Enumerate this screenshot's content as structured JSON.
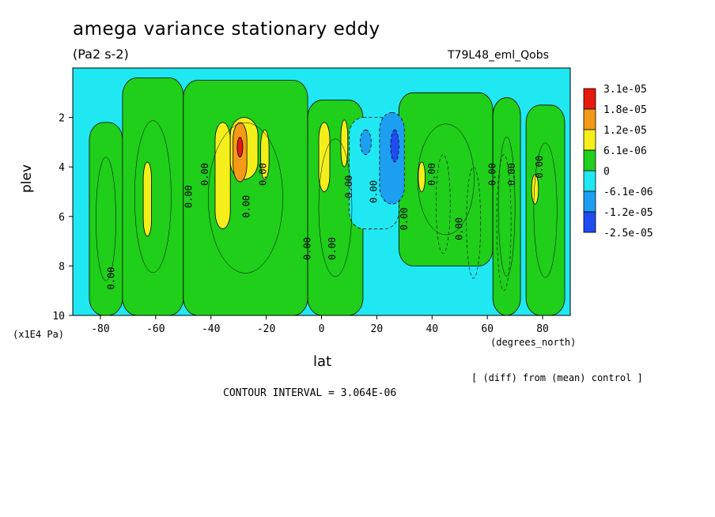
{
  "chart_data": {
    "type": "heatmap",
    "title": "amega variance stationary eddy",
    "units": "(Pa2 s-2)",
    "run_label": "T79L48_eml_Qobs",
    "xlabel": "lat",
    "x_units": "(degrees_north)",
    "ylabel": "plev",
    "y_units": "(x1E4 Pa)",
    "x_range": [
      -90,
      90
    ],
    "y_range": [
      0,
      10
    ],
    "y_inverted": true,
    "x_ticks": [
      "-80",
      "-60",
      "-40",
      "-20",
      "0",
      "20",
      "40",
      "60",
      "80"
    ],
    "x_tick_values": [
      -80,
      -60,
      -40,
      -20,
      0,
      20,
      40,
      60,
      80
    ],
    "y_ticks": [
      "2",
      "4",
      "6",
      "8",
      "10"
    ],
    "y_tick_values": [
      2,
      4,
      6,
      8,
      10
    ],
    "legend": {
      "placement": "right",
      "labels": [
        "3.1e-05",
        "1.8e-05",
        "1.2e-05",
        "6.1e-06",
        "0",
        "-6.1e-06",
        "-1.2e-05",
        "-2.5e-05"
      ],
      "colors": [
        "#e8190f",
        "#f59a16",
        "#f4ef1a",
        "#1fcf1a",
        "#1fe8f2",
        "#1c9ff0",
        "#1f4bf0"
      ]
    },
    "contour_label": "0.00",
    "note": "[ (diff) from (mean) control ]",
    "contour_interval": "CONTOUR INTERVAL = 3.064E-06",
    "regions": [
      {
        "level": "pos1",
        "lat": [
          -84,
          -72
        ],
        "plev": [
          2.2,
          10
        ]
      },
      {
        "level": "pos1",
        "lat": [
          -72,
          -50
        ],
        "plev": [
          0.4,
          10
        ]
      },
      {
        "level": "pos1",
        "lat": [
          -50,
          -5
        ],
        "plev": [
          0.5,
          10
        ]
      },
      {
        "level": "pos1",
        "lat": [
          -5,
          15
        ],
        "plev": [
          1.3,
          10
        ]
      },
      {
        "level": "pos1",
        "lat": [
          28,
          62
        ],
        "plev": [
          1.0,
          8.0
        ]
      },
      {
        "level": "pos1",
        "lat": [
          62,
          72
        ],
        "plev": [
          1.2,
          10
        ]
      },
      {
        "level": "pos1",
        "lat": [
          74,
          88
        ],
        "plev": [
          1.5,
          10
        ]
      },
      {
        "level": "pos2",
        "lat": [
          -64.5,
          -61.5
        ],
        "plev": [
          3.8,
          6.8
        ]
      },
      {
        "level": "pos2",
        "lat": [
          -38.5,
          -33
        ],
        "plev": [
          2.2,
          6.5
        ]
      },
      {
        "level": "pos2",
        "lat": [
          -33,
          -23
        ],
        "plev": [
          2.0,
          4.5
        ]
      },
      {
        "level": "pos2",
        "lat": [
          -22,
          -19
        ],
        "plev": [
          2.5,
          4.5
        ]
      },
      {
        "level": "pos2",
        "lat": [
          -1,
          3
        ],
        "plev": [
          2.2,
          5.0
        ]
      },
      {
        "level": "pos2",
        "lat": [
          7,
          9.5
        ],
        "plev": [
          2.1,
          4.0
        ]
      },
      {
        "level": "pos2",
        "lat": [
          35,
          37.5
        ],
        "plev": [
          3.8,
          5.0
        ]
      },
      {
        "level": "pos2",
        "lat": [
          76,
          78.5
        ],
        "plev": [
          4.3,
          5.5
        ]
      },
      {
        "level": "pos3",
        "lat": [
          -32,
          -27
        ],
        "plev": [
          2.2,
          4.6
        ]
      },
      {
        "level": "pos4",
        "lat": [
          -30.5,
          -28.5
        ],
        "plev": [
          2.8,
          3.6
        ]
      },
      {
        "level": "neg1",
        "lat": [
          10,
          28
        ],
        "plev": [
          2.0,
          6.5
        ]
      },
      {
        "level": "neg2",
        "lat": [
          14,
          18
        ],
        "plev": [
          2.5,
          3.5
        ]
      },
      {
        "level": "neg2",
        "lat": [
          21,
          30
        ],
        "plev": [
          1.8,
          5.5
        ]
      },
      {
        "level": "neg3",
        "lat": [
          25,
          28
        ],
        "plev": [
          2.5,
          3.8
        ]
      }
    ]
  }
}
